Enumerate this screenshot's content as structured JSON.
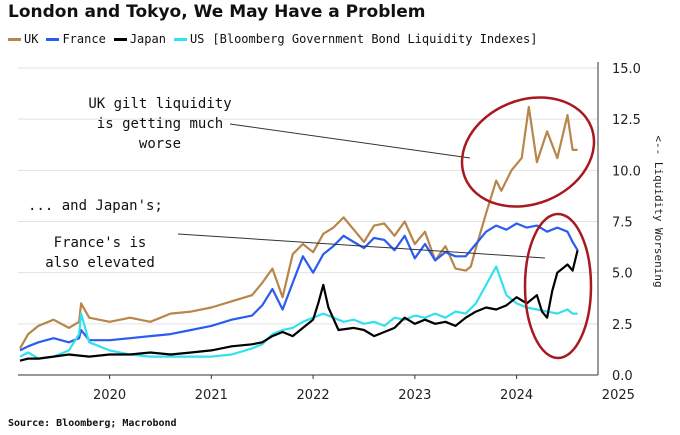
{
  "header": {
    "title": "London and Tokyo, We May Have a Problem",
    "legend_suffix": "[Bloomberg Government Bond Liquidity Indexes]"
  },
  "source": "Source: Bloomberg; Macrobond",
  "annotations": {
    "uk": [
      "UK gilt liquidity",
      "is getting much",
      "worse"
    ],
    "japan": "... and Japan's;",
    "france": [
      "France's is",
      "also elevated"
    ]
  },
  "chart_data": {
    "type": "line",
    "title": "London and Tokyo, We May Have a Problem",
    "ylabel": "<-- Liquidity Worsening",
    "ylim": [
      0,
      15
    ],
    "xlim": [
      2019.6,
      2025.3
    ],
    "yticks": [
      "0.0",
      "2.5",
      "5.0",
      "7.5",
      "10.0",
      "12.5",
      "15.0"
    ],
    "xticks": [
      "2020",
      "2021",
      "2022",
      "2023",
      "2024",
      "2025"
    ],
    "grid": true,
    "legend_position": "top-left",
    "series": [
      {
        "name": "UK",
        "color": "#b8864a",
        "x": [
          2019.62,
          2019.7,
          2019.8,
          2019.95,
          2020.1,
          2020.2,
          2020.22,
          2020.3,
          2020.5,
          2020.7,
          2020.9,
          2021.1,
          2021.3,
          2021.5,
          2021.7,
          2021.9,
          2022.0,
          2022.1,
          2022.2,
          2022.3,
          2022.4,
          2022.5,
          2022.6,
          2022.7,
          2022.8,
          2022.9,
          2023.0,
          2023.1,
          2023.2,
          2023.3,
          2023.4,
          2023.5,
          2023.6,
          2023.7,
          2023.8,
          2023.9,
          2024.0,
          2024.05,
          2024.1,
          2024.2,
          2024.3,
          2024.35,
          2024.45,
          2024.55,
          2024.62,
          2024.7,
          2024.8,
          2024.9,
          2025.0,
          2025.05,
          2025.1
        ],
        "values": [
          1.3,
          2.0,
          2.4,
          2.7,
          2.3,
          2.6,
          3.5,
          2.8,
          2.6,
          2.8,
          2.6,
          3.0,
          3.1,
          3.3,
          3.6,
          3.9,
          4.5,
          5.2,
          3.8,
          5.9,
          6.4,
          6.0,
          6.9,
          7.2,
          7.7,
          7.1,
          6.5,
          7.3,
          7.4,
          6.8,
          7.5,
          6.4,
          7.0,
          5.6,
          6.3,
          5.2,
          5.1,
          5.3,
          6.2,
          7.9,
          9.5,
          9.0,
          10.0,
          10.6,
          13.1,
          10.4,
          11.9,
          10.6,
          12.7,
          11.0,
          11.0
        ]
      },
      {
        "name": "France",
        "color": "#2a5cf0",
        "x": [
          2019.62,
          2019.7,
          2019.8,
          2019.95,
          2020.1,
          2020.2,
          2020.22,
          2020.3,
          2020.5,
          2020.7,
          2020.9,
          2021.1,
          2021.3,
          2021.5,
          2021.7,
          2021.9,
          2022.0,
          2022.1,
          2022.2,
          2022.3,
          2022.4,
          2022.5,
          2022.6,
          2022.7,
          2022.8,
          2022.9,
          2023.0,
          2023.1,
          2023.2,
          2023.3,
          2023.4,
          2023.5,
          2023.6,
          2023.7,
          2023.8,
          2023.9,
          2024.0,
          2024.1,
          2024.2,
          2024.3,
          2024.4,
          2024.5,
          2024.6,
          2024.7,
          2024.8,
          2024.9,
          2025.0,
          2025.05,
          2025.1
        ],
        "values": [
          1.2,
          1.4,
          1.6,
          1.8,
          1.6,
          1.8,
          2.2,
          1.7,
          1.7,
          1.8,
          1.9,
          2.0,
          2.2,
          2.4,
          2.7,
          2.9,
          3.4,
          4.2,
          3.2,
          4.5,
          5.8,
          5.0,
          5.9,
          6.3,
          6.8,
          6.5,
          6.2,
          6.7,
          6.6,
          6.1,
          6.8,
          5.7,
          6.4,
          5.6,
          6.0,
          5.8,
          5.8,
          6.4,
          7.0,
          7.3,
          7.1,
          7.4,
          7.2,
          7.3,
          7.0,
          7.2,
          7.0,
          6.5,
          6.1
        ]
      },
      {
        "name": "Japan",
        "color": "#000000",
        "x": [
          2019.62,
          2019.7,
          2019.8,
          2019.95,
          2020.1,
          2020.3,
          2020.5,
          2020.7,
          2020.9,
          2021.1,
          2021.3,
          2021.5,
          2021.7,
          2021.9,
          2022.0,
          2022.1,
          2022.2,
          2022.3,
          2022.4,
          2022.5,
          2022.55,
          2022.6,
          2022.65,
          2022.75,
          2022.9,
          2023.0,
          2023.1,
          2023.2,
          2023.3,
          2023.4,
          2023.5,
          2023.6,
          2023.7,
          2023.8,
          2023.9,
          2024.0,
          2024.1,
          2024.2,
          2024.3,
          2024.4,
          2024.5,
          2024.6,
          2024.7,
          2024.75,
          2024.8,
          2024.85,
          2024.9,
          2025.0,
          2025.05,
          2025.1
        ],
        "values": [
          0.7,
          0.8,
          0.8,
          0.9,
          1.0,
          0.9,
          1.0,
          1.0,
          1.1,
          1.0,
          1.1,
          1.2,
          1.4,
          1.5,
          1.6,
          1.9,
          2.1,
          1.9,
          2.3,
          2.7,
          3.5,
          4.4,
          3.3,
          2.2,
          2.3,
          2.2,
          1.9,
          2.1,
          2.3,
          2.8,
          2.5,
          2.7,
          2.5,
          2.6,
          2.4,
          2.8,
          3.1,
          3.3,
          3.2,
          3.4,
          3.8,
          3.5,
          3.9,
          3.1,
          2.8,
          4.1,
          5.0,
          5.4,
          5.1,
          6.1
        ]
      },
      {
        "name": "US",
        "color": "#33e0f0",
        "x": [
          2019.62,
          2019.7,
          2019.8,
          2019.95,
          2020.1,
          2020.2,
          2020.22,
          2020.3,
          2020.5,
          2020.7,
          2020.9,
          2021.1,
          2021.3,
          2021.5,
          2021.7,
          2021.9,
          2022.0,
          2022.1,
          2022.2,
          2022.3,
          2022.4,
          2022.5,
          2022.6,
          2022.7,
          2022.8,
          2022.9,
          2023.0,
          2023.1,
          2023.2,
          2023.3,
          2023.4,
          2023.5,
          2023.6,
          2023.7,
          2023.8,
          2023.9,
          2024.0,
          2024.1,
          2024.2,
          2024.3,
          2024.4,
          2024.5,
          2024.6,
          2024.7,
          2024.8,
          2024.9,
          2025.0,
          2025.05,
          2025.1
        ],
        "values": [
          0.9,
          1.1,
          0.8,
          0.9,
          1.2,
          2.0,
          3.0,
          1.6,
          1.2,
          1.0,
          0.9,
          0.9,
          0.9,
          0.9,
          1.0,
          1.3,
          1.5,
          2.0,
          2.2,
          2.3,
          2.6,
          2.8,
          3.0,
          2.8,
          2.6,
          2.7,
          2.5,
          2.6,
          2.4,
          2.8,
          2.7,
          2.9,
          2.8,
          3.0,
          2.8,
          3.1,
          3.0,
          3.5,
          4.4,
          5.3,
          3.9,
          3.5,
          3.3,
          3.2,
          3.1,
          3.0,
          3.2,
          3.0,
          3.0
        ]
      }
    ]
  }
}
